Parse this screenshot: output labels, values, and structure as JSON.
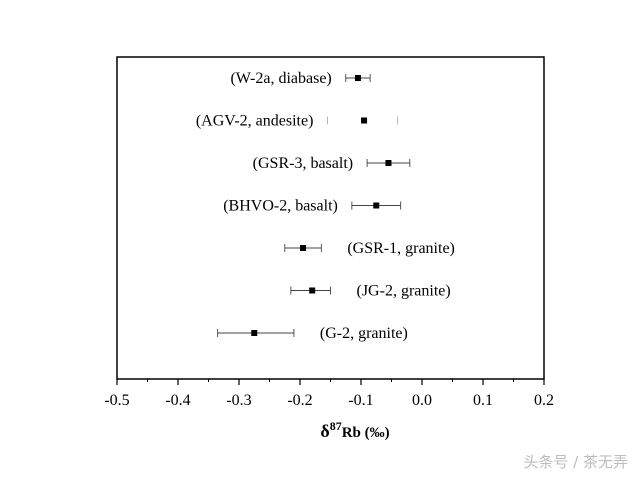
{
  "chart_data": {
    "type": "scatter",
    "xlabel_main": "δ",
    "xlabel_sup": "87",
    "xlabel_rest": "Rb (‰)",
    "xlim": [
      -0.5,
      0.2
    ],
    "xticks": [
      -0.5,
      -0.4,
      -0.3,
      -0.2,
      -0.1,
      0.0,
      0.1,
      0.2
    ],
    "xtick_labels": [
      "-0.5",
      "-0.4",
      "-0.3",
      "-0.2",
      "-0.1",
      "0.0",
      "0.1",
      "0.2"
    ],
    "grid": false,
    "points": [
      {
        "label": "(W-2a, diabase)",
        "value": -0.105,
        "err_low": -0.125,
        "err_high": -0.085,
        "label_side": "left",
        "cap_style": "solid"
      },
      {
        "label": "(AGV-2, andesite)",
        "value": -0.095,
        "err_low": -0.155,
        "err_high": -0.04,
        "label_side": "left",
        "cap_style": "faint"
      },
      {
        "label": "(GSR-3, basalt)",
        "value": -0.055,
        "err_low": -0.09,
        "err_high": -0.02,
        "label_side": "left",
        "cap_style": "solid"
      },
      {
        "label": "(BHVO-2, basalt)",
        "value": -0.075,
        "err_low": -0.115,
        "err_high": -0.035,
        "label_side": "left",
        "cap_style": "solid"
      },
      {
        "label": "(GSR-1, granite)",
        "value": -0.195,
        "err_low": -0.225,
        "err_high": -0.165,
        "label_side": "right",
        "cap_style": "solid"
      },
      {
        "label": "(JG-2, granite)",
        "value": -0.18,
        "err_low": -0.215,
        "err_high": -0.15,
        "label_side": "right",
        "cap_style": "solid"
      },
      {
        "label": "(G-2, granite)",
        "value": -0.275,
        "err_low": -0.335,
        "err_high": -0.21,
        "label_side": "right",
        "cap_style": "solid"
      }
    ]
  },
  "watermark": "头条号 / 茶无弄"
}
